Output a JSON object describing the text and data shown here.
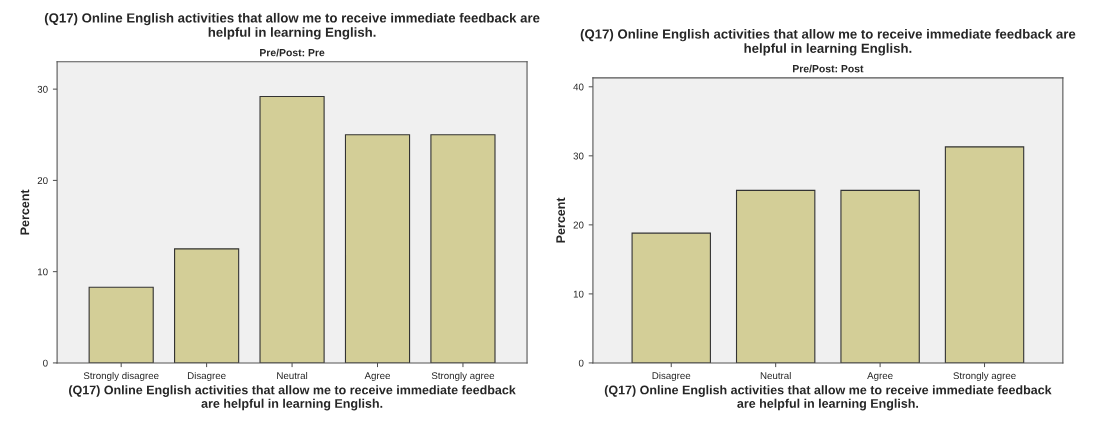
{
  "chart_data": [
    {
      "type": "bar",
      "title": "(Q17) Online English activities that allow me to receive immediate feedback are\nhelpful in learning English.",
      "subtitle": "Pre/Post: Pre",
      "xlabel": "(Q17) Online English activities that allow me to receive immediate feedback\nare helpful in learning English.",
      "ylabel": "Percent",
      "categories": [
        "Strongly disagree",
        "Disagree",
        "Neutral",
        "Agree",
        "Strongly agree"
      ],
      "values": [
        8.3,
        12.5,
        29.2,
        25.0,
        25.0
      ],
      "color": "#d3ce97",
      "ylim": [
        0,
        33
      ],
      "yticks": [
        0,
        10,
        20,
        30
      ],
      "grid": false
    },
    {
      "type": "bar",
      "title": "(Q17) Online English activities that allow me to receive immediate feedback are\nhelpful in learning English.",
      "subtitle": "Pre/Post: Post",
      "xlabel": "(Q17) Online English activities that allow me to receive immediate feedback\nare helpful in learning English.",
      "ylabel": "Percent",
      "categories": [
        "Disagree",
        "Neutral",
        "Agree",
        "Strongly agree"
      ],
      "values": [
        18.8,
        25.0,
        25.0,
        31.3
      ],
      "color": "#d3ce97",
      "ylim": [
        0,
        41.3
      ],
      "yticks": [
        0,
        10,
        20,
        30,
        40
      ],
      "grid": false
    }
  ]
}
